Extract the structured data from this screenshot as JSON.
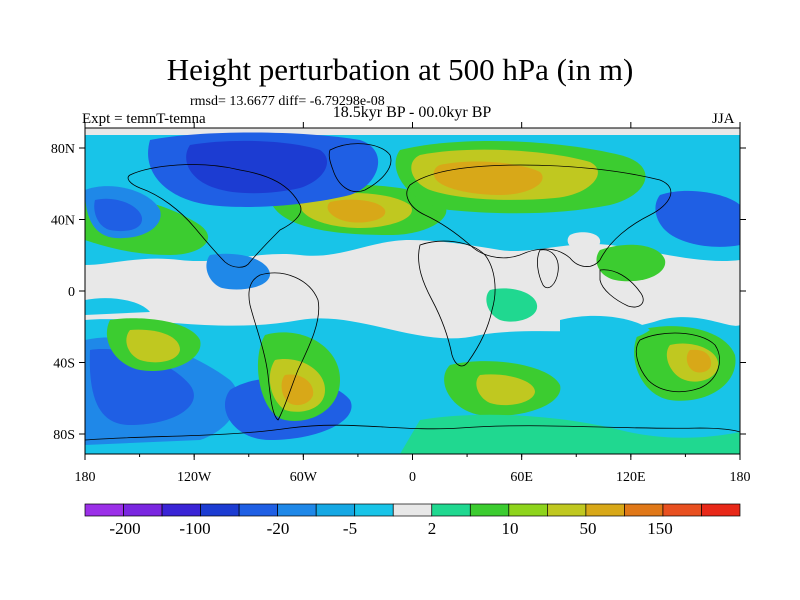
{
  "header": {
    "title": "Height perturbation at 500 hPa (in m)",
    "stats": "rmsd= 13.6677  diff= -6.79298e-08",
    "expt": "Expt = temnT-temna",
    "period": "18.5kyr BP - 00.0kyr BP",
    "season": "JJA"
  },
  "axes": {
    "lat_labels": [
      "80N",
      "40N",
      "0",
      "40S",
      "80S"
    ],
    "lon_labels": [
      "180",
      "120W",
      "60W",
      "0",
      "60E",
      "120E",
      "180"
    ]
  },
  "colorbar": {
    "colors": [
      "#9b30e8",
      "#7a26e0",
      "#3a24d6",
      "#1c3cd2",
      "#1f5fe4",
      "#1f88e8",
      "#16a8e4",
      "#18c4e8",
      "#e8e8e8",
      "#20d890",
      "#3ccc30",
      "#8ed41c",
      "#c0c820",
      "#d8a818",
      "#e07818",
      "#e85020",
      "#e82818"
    ],
    "labels": [
      "-200",
      "-100",
      "-20",
      "-5",
      "2",
      "10",
      "50",
      "150"
    ]
  },
  "field_colors": {
    "neutral": "#e8e8e8",
    "ocean_fill": "#e8e8e8",
    "coast": "#000000"
  }
}
